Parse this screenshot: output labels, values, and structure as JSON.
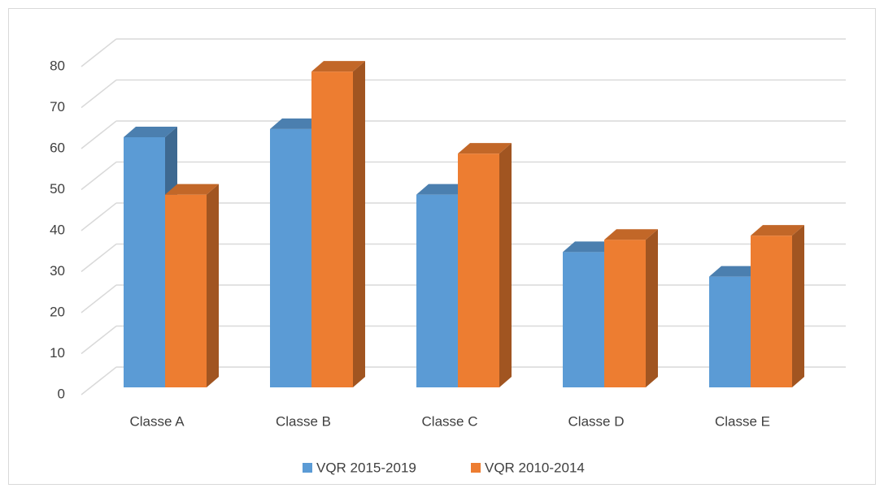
{
  "chart_data": {
    "type": "bar3d",
    "categories": [
      "Classe A",
      "Classe B",
      "Classe C",
      "Classe D",
      "Classe E"
    ],
    "series": [
      {
        "name": "VQR 2015-2019",
        "color": "#5b9bd5",
        "values": [
          61,
          63,
          47,
          33,
          27
        ]
      },
      {
        "name": "VQR 2010-2014",
        "color": "#ed7d31",
        "values": [
          47,
          77,
          57,
          36,
          37
        ]
      }
    ],
    "ylim": [
      0,
      80
    ],
    "yticks": [
      0,
      10,
      20,
      30,
      40,
      50,
      60,
      70,
      80
    ],
    "grid": true,
    "legend": "bottom"
  }
}
